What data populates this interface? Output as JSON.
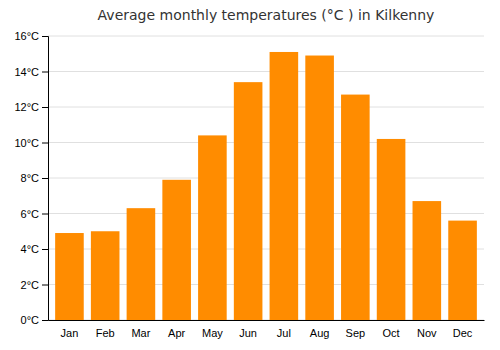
{
  "chart_data": {
    "type": "bar",
    "title": "Average monthly temperatures (°C ) in Kilkenny",
    "categories": [
      "Jan",
      "Feb",
      "Mar",
      "Apr",
      "May",
      "Jun",
      "Jul",
      "Aug",
      "Sep",
      "Oct",
      "Nov",
      "Dec"
    ],
    "values": [
      4.9,
      5.0,
      6.3,
      7.9,
      10.4,
      13.4,
      15.1,
      14.9,
      12.7,
      10.2,
      6.7,
      5.6
    ],
    "color": "#FF8C00",
    "ylim": [
      0,
      16
    ],
    "yticks": [
      {
        "value": 0,
        "label": "0°C"
      },
      {
        "value": 2,
        "label": "2°C"
      },
      {
        "value": 4,
        "label": "4°C"
      },
      {
        "value": 6,
        "label": "6°C"
      },
      {
        "value": 8,
        "label": "8°C"
      },
      {
        "value": 10,
        "label": "10°C"
      },
      {
        "value": 12,
        "label": "12°C"
      },
      {
        "value": 14,
        "label": "14°C"
      },
      {
        "value": 16,
        "label": "16°C"
      }
    ],
    "grid": true
  }
}
